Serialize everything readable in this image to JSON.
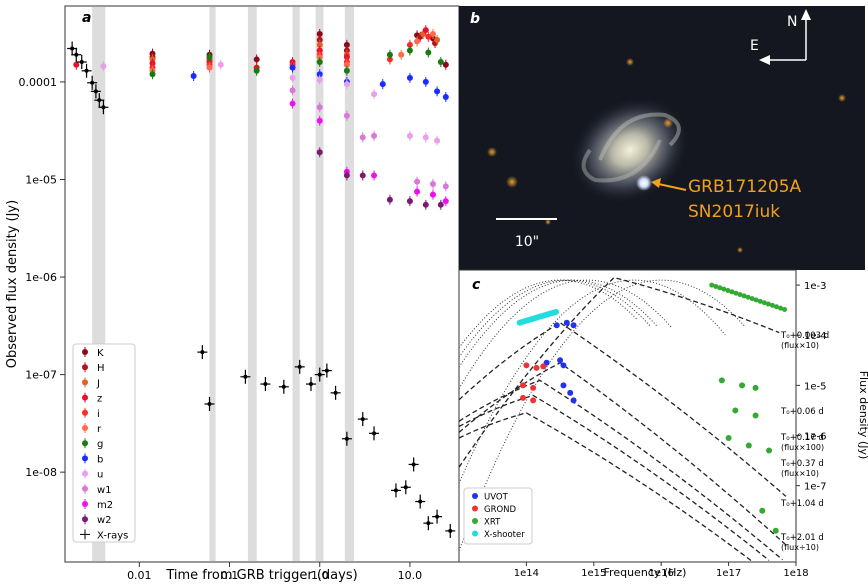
{
  "chart_data": [
    {
      "panel": "a",
      "type": "scatter",
      "xlabel": "Time from GRB trigger (days)",
      "ylabel": "Observed flux density (Jy)",
      "xscale": "log",
      "yscale": "log",
      "xlim": [
        0.0015,
        35
      ],
      "ylim": [
        1.2e-09,
        0.0006
      ],
      "xticks": [
        {
          "v": 0.01,
          "label": "0.01"
        },
        {
          "v": 0.1,
          "label": "0.1"
        },
        {
          "v": 1,
          "label": "1.0"
        },
        {
          "v": 10,
          "label": "10.0"
        }
      ],
      "yticks": [
        {
          "v": 0.0001,
          "label": "0.0001"
        },
        {
          "v": 1e-05,
          "label": "1e-05"
        },
        {
          "v": 1e-06,
          "label": "1e-06"
        },
        {
          "v": 1e-07,
          "label": "1e-07"
        },
        {
          "v": 1e-08,
          "label": "1e-08"
        }
      ],
      "bands": [
        [
          0.003,
          0.0042
        ],
        [
          0.06,
          0.07
        ],
        [
          0.16,
          0.2
        ],
        [
          0.5,
          0.6
        ],
        [
          0.9,
          1.1
        ],
        [
          1.9,
          2.4
        ]
      ],
      "legend_position": "lower-left",
      "series": [
        {
          "name": "K",
          "color": "#8b0a1a",
          "points": [
            [
              0.014,
              0.000195
            ],
            [
              0.06,
              0.00019
            ],
            [
              0.2,
              0.00017
            ],
            [
              1.0,
              0.00031
            ],
            [
              2.0,
              0.00024
            ],
            [
              12,
              0.0003
            ],
            [
              18,
              0.00028
            ],
            [
              25,
              0.00015
            ]
          ]
        },
        {
          "name": "H",
          "color": "#b3121f",
          "points": [
            [
              0.014,
              0.00018
            ],
            [
              0.06,
              0.00017
            ],
            [
              1.0,
              0.00027
            ],
            [
              2.0,
              0.00021
            ],
            [
              13,
              0.00029
            ],
            [
              19,
              0.00025
            ]
          ]
        },
        {
          "name": "J",
          "color": "#e0602a",
          "points": [
            [
              0.014,
              0.00017
            ],
            [
              0.06,
              0.000165
            ],
            [
              1.0,
              0.00024
            ],
            [
              2.0,
              0.00019
            ],
            [
              14,
              0.00031
            ],
            [
              20,
              0.00027
            ]
          ]
        },
        {
          "name": "z",
          "color": "#e8102a",
          "points": [
            [
              0.002,
              0.00015
            ],
            [
              0.014,
              0.000155
            ],
            [
              0.06,
              0.00016
            ],
            [
              0.2,
              0.00014
            ],
            [
              0.5,
              0.00016
            ],
            [
              1.0,
              0.00021
            ],
            [
              2.0,
              0.00018
            ],
            [
              15,
              0.00034
            ]
          ]
        },
        {
          "name": "i",
          "color": "#ff2a2a",
          "points": [
            [
              0.014,
              0.00014
            ],
            [
              0.06,
              0.00015
            ],
            [
              0.5,
              0.00015
            ],
            [
              1.0,
              0.00019
            ],
            [
              2.0,
              0.00016
            ],
            [
              6,
              0.00017
            ],
            [
              10,
              0.00024
            ],
            [
              16,
              0.00029
            ]
          ]
        },
        {
          "name": "r",
          "color": "#ff6a4a",
          "points": [
            [
              0.014,
              0.00013
            ],
            [
              0.06,
              0.00014
            ],
            [
              0.5,
              0.00014
            ],
            [
              1.0,
              0.00018
            ],
            [
              2.0,
              0.00015
            ],
            [
              8,
              0.00019
            ],
            [
              12,
              0.00026
            ],
            [
              18,
              0.00031
            ]
          ]
        },
        {
          "name": "g",
          "color": "#1a7a12",
          "points": [
            [
              0.014,
              0.00012
            ],
            [
              0.06,
              0.00018
            ],
            [
              0.2,
              0.00013
            ],
            [
              1.0,
              0.00016
            ],
            [
              2.0,
              0.00013
            ],
            [
              6,
              0.00019
            ],
            [
              10,
              0.00021
            ],
            [
              16,
              0.0002
            ],
            [
              22,
              0.00016
            ]
          ]
        },
        {
          "name": "b",
          "color": "#1a2cff",
          "points": [
            [
              0.04,
              0.000115
            ],
            [
              0.5,
              0.00014
            ],
            [
              1.0,
              0.00012
            ],
            [
              2.0,
              0.0001
            ],
            [
              5,
              9.5e-05
            ],
            [
              10,
              0.00011
            ],
            [
              15,
              0.0001
            ],
            [
              20,
              8e-05
            ],
            [
              25,
              7e-05
            ]
          ]
        },
        {
          "name": "u",
          "color": "#e8a0ea",
          "points": [
            [
              0.004,
              0.000145
            ],
            [
              0.08,
              0.00015
            ],
            [
              0.5,
              0.00011
            ],
            [
              1.0,
              0.000105
            ],
            [
              2.0,
              9.5e-05
            ],
            [
              4,
              7.5e-05
            ],
            [
              10,
              2.8e-05
            ],
            [
              15,
              2.7e-05
            ],
            [
              20,
              2.5e-05
            ]
          ]
        },
        {
          "name": "w1",
          "color": "#d878d8",
          "points": [
            [
              0.5,
              8.2e-05
            ],
            [
              1.0,
              5.5e-05
            ],
            [
              2.0,
              4.5e-05
            ],
            [
              3,
              2.7e-05
            ],
            [
              4,
              2.8e-05
            ],
            [
              12,
              9.5e-06
            ],
            [
              18,
              9e-06
            ],
            [
              25,
              8.5e-06
            ]
          ]
        },
        {
          "name": "m2",
          "color": "#ee10ee",
          "points": [
            [
              0.5,
              6e-05
            ],
            [
              1.0,
              4e-05
            ],
            [
              2.0,
              1.2e-05
            ],
            [
              4,
              1.1e-05
            ],
            [
              12,
              7.5e-06
            ],
            [
              18,
              7e-06
            ],
            [
              25,
              6e-06
            ]
          ]
        },
        {
          "name": "w2",
          "color": "#7a1a72",
          "points": [
            [
              1.0,
              1.9e-05
            ],
            [
              2.0,
              1.1e-05
            ],
            [
              3,
              1.1e-05
            ],
            [
              6,
              6.2e-06
            ],
            [
              10,
              6e-06
            ],
            [
              15,
              5.5e-06
            ],
            [
              22,
              5.5e-06
            ]
          ]
        },
        {
          "name": "X-rays",
          "color": "#000000",
          "points": [
            [
              0.0018,
              0.00022
            ],
            [
              0.002,
              0.00019
            ],
            [
              0.0023,
              0.00016
            ],
            [
              0.0026,
              0.00013
            ],
            [
              0.003,
              9.8e-05
            ],
            [
              0.0033,
              8e-05
            ],
            [
              0.0036,
              6.5e-05
            ],
            [
              0.004,
              5.5e-05
            ],
            [
              0.05,
              1.7e-07
            ],
            [
              0.06,
              5e-08
            ],
            [
              0.15,
              9.5e-08
            ],
            [
              0.25,
              8e-08
            ],
            [
              0.4,
              7.5e-08
            ],
            [
              0.6,
              1.2e-07
            ],
            [
              0.8,
              8e-08
            ],
            [
              1.0,
              1e-07
            ],
            [
              1.2,
              1.1e-07
            ],
            [
              1.5,
              6.5e-08
            ],
            [
              2.0,
              2.2e-08
            ],
            [
              3.0,
              3.5e-08
            ],
            [
              4.0,
              2.5e-08
            ],
            [
              7.0,
              6.5e-09
            ],
            [
              9.0,
              7e-09
            ],
            [
              11,
              1.2e-08
            ],
            [
              13,
              5e-09
            ],
            [
              16,
              3e-09
            ],
            [
              20,
              3.5e-09
            ],
            [
              28,
              2.5e-09
            ]
          ]
        }
      ]
    },
    {
      "panel": "c",
      "type": "line",
      "xlabel": "Frequency (Hz)",
      "ylabel": "Flux density (Jy)",
      "xscale": "log",
      "yscale": "log",
      "xlim": [
        10000000000000.0,
        1e+18
      ],
      "ylim": [
        3e-09,
        0.002
      ],
      "xticks": [
        {
          "v": 100000000000000.0,
          "label": "1e14"
        },
        {
          "v": 1000000000000000.0,
          "label": "1e15"
        },
        {
          "v": 1e+16,
          "label": "1e16"
        },
        {
          "v": 1e+17,
          "label": "1e17"
        },
        {
          "v": 1e+18,
          "label": "1e18"
        }
      ],
      "yticks": [
        {
          "v": 0.001,
          "label": "1e-3"
        },
        {
          "v": 0.0001,
          "label": "1e-4"
        },
        {
          "v": 1e-05,
          "label": "1e-5"
        },
        {
          "v": 1e-06,
          "label": "1e-6"
        },
        {
          "v": 1e-07,
          "label": "1e-7"
        }
      ],
      "epochs": [
        {
          "label": "T₀+0.003 d",
          "sub": "(flux×10)"
        },
        {
          "label": "T₀+0.06 d",
          "sub": ""
        },
        {
          "label": "T₀+0.17 d",
          "sub": "(flux×100)"
        },
        {
          "label": "T₀+0.37 d",
          "sub": "(flux×10)"
        },
        {
          "label": "T₀+1.04 d",
          "sub": ""
        },
        {
          "label": "T₀+2.01 d",
          "sub": "(flux÷10)"
        }
      ],
      "legend_position": "lower-left",
      "legend": [
        {
          "name": "UVOT",
          "color": "#2233ee"
        },
        {
          "name": "GROND",
          "color": "#ee3333"
        },
        {
          "name": "XRT",
          "color": "#33aa33"
        },
        {
          "name": "X-shooter",
          "color": "#22dddd"
        }
      ]
    }
  ],
  "image_panel": {
    "label": "b",
    "compass_n": "N",
    "compass_e": "E",
    "scale_label": "10\"",
    "source_line1": "GRB171205A",
    "source_line2": "SN2017iuk"
  },
  "panel_labels": {
    "a": "a",
    "b": "b",
    "c": "c"
  }
}
